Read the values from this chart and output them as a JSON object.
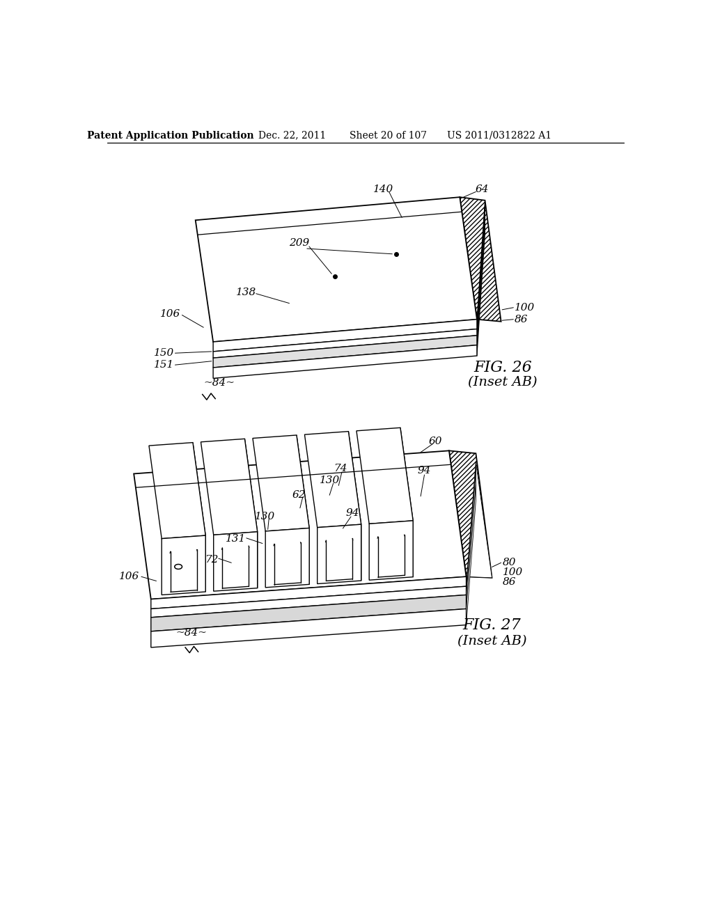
{
  "background_color": "#ffffff",
  "header_text": "Patent Application Publication",
  "header_date": "Dec. 22, 2011",
  "header_sheet": "Sheet 20 of 107",
  "header_patent": "US 2011/0312822 A1",
  "fig26_title": "FIG. 26",
  "fig26_subtitle": "(Inset AB)",
  "fig27_title": "FIG. 27",
  "fig27_subtitle": "(Inset AB)",
  "label_fontsize": 11,
  "header_fontsize": 10,
  "fig_caption_fontsize": 16,
  "fig_sub_fontsize": 14
}
